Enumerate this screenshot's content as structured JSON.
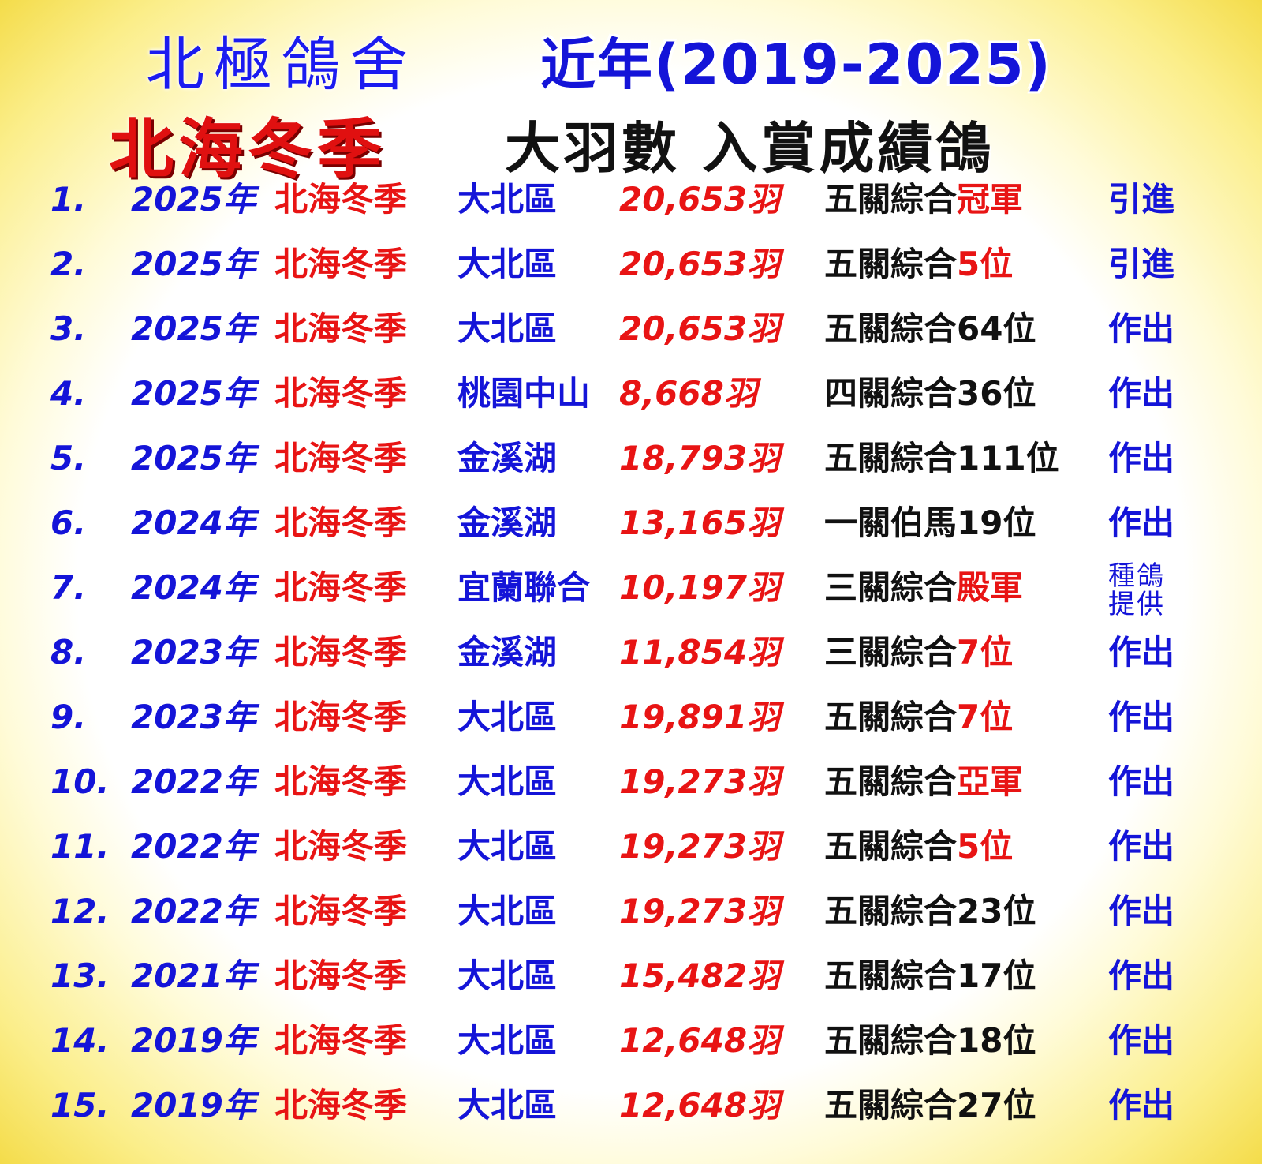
{
  "header": {
    "brand": "北極鴿舍",
    "years": "近年(2019-2025)",
    "event_title": "北海冬季",
    "subtitle": "大羽數 入賞成績鴿"
  },
  "colors": {
    "blue": "#1414d8",
    "red": "#e81414",
    "black": "#111111",
    "background_edge": "#f4dc4a"
  },
  "rows": [
    {
      "num": "1.",
      "year": "2025年",
      "event": "北海冬季",
      "region": "大北區",
      "count": "20,653羽",
      "result_prefix": "五關綜合",
      "result_highlight": "冠軍",
      "action": "引進"
    },
    {
      "num": "2.",
      "year": "2025年",
      "event": "北海冬季",
      "region": "大北區",
      "count": "20,653羽",
      "result_prefix": "五關綜合",
      "result_highlight": "5位",
      "action": "引進"
    },
    {
      "num": "3.",
      "year": "2025年",
      "event": "北海冬季",
      "region": "大北區",
      "count": "20,653羽",
      "result_prefix": "五關綜合64位",
      "result_highlight": "",
      "action": "作出"
    },
    {
      "num": "4.",
      "year": "2025年",
      "event": "北海冬季",
      "region": "桃園中山",
      "count": "8,668羽",
      "result_prefix": "四關綜合36位",
      "result_highlight": "",
      "action": "作出"
    },
    {
      "num": "5.",
      "year": "2025年",
      "event": "北海冬季",
      "region": "金溪湖",
      "count": "18,793羽",
      "result_prefix": "五關綜合111位",
      "result_highlight": "",
      "action": "作出"
    },
    {
      "num": "6.",
      "year": "2024年",
      "event": "北海冬季",
      "region": "金溪湖",
      "count": "13,165羽",
      "result_prefix": "一關伯馬19位",
      "result_highlight": "",
      "action": "作出"
    },
    {
      "num": "7.",
      "year": "2024年",
      "event": "北海冬季",
      "region": "宜蘭聯合",
      "count": "10,197羽",
      "result_prefix": "三關綜合",
      "result_highlight": "殿軍",
      "action": "種鴿提供"
    },
    {
      "num": "8.",
      "year": "2023年",
      "event": "北海冬季",
      "region": "金溪湖",
      "count": "11,854羽",
      "result_prefix": "三關綜合",
      "result_highlight": "7位",
      "action": "作出"
    },
    {
      "num": "9.",
      "year": "2023年",
      "event": "北海冬季",
      "region": "大北區",
      "count": "19,891羽",
      "result_prefix": "五關綜合",
      "result_highlight": "7位",
      "action": "作出"
    },
    {
      "num": "10.",
      "year": "2022年",
      "event": "北海冬季",
      "region": "大北區",
      "count": "19,273羽",
      "result_prefix": "五關綜合",
      "result_highlight": "亞軍",
      "action": "作出"
    },
    {
      "num": "11.",
      "year": "2022年",
      "event": "北海冬季",
      "region": "大北區",
      "count": "19,273羽",
      "result_prefix": "五關綜合",
      "result_highlight": "5位",
      "action": "作出"
    },
    {
      "num": "12.",
      "year": "2022年",
      "event": "北海冬季",
      "region": "大北區",
      "count": "19,273羽",
      "result_prefix": "五關綜合23位",
      "result_highlight": "",
      "action": "作出"
    },
    {
      "num": "13.",
      "year": "2021年",
      "event": "北海冬季",
      "region": "大北區",
      "count": "15,482羽",
      "result_prefix": "五關綜合17位",
      "result_highlight": "",
      "action": "作出"
    },
    {
      "num": "14.",
      "year": "2019年",
      "event": "北海冬季",
      "region": "大北區",
      "count": "12,648羽",
      "result_prefix": "五關綜合18位",
      "result_highlight": "",
      "action": "作出"
    },
    {
      "num": "15.",
      "year": "2019年",
      "event": "北海冬季",
      "region": "大北區",
      "count": "12,648羽",
      "result_prefix": "五關綜合27位",
      "result_highlight": "",
      "action": "作出"
    }
  ]
}
